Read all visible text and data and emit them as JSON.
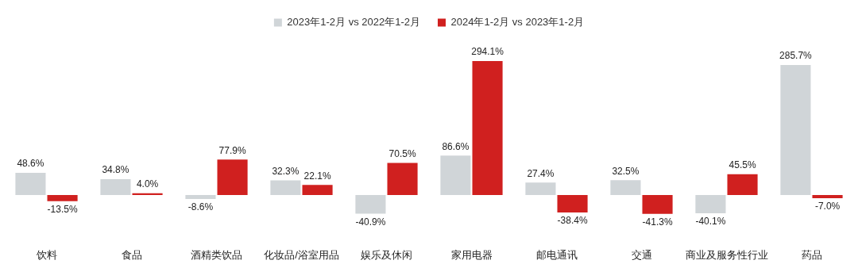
{
  "chart_data": {
    "type": "bar",
    "categories": [
      "饮料",
      "食品",
      "酒精类饮品",
      "化妆品/浴室用品",
      "娱乐及休闲",
      "家用电器",
      "邮电通讯",
      "交通",
      "商业及服务性行业",
      "药品"
    ],
    "series": [
      {
        "name": "2023年1-2月 vs 2022年1-2月",
        "color": "#d0d5d8",
        "values": [
          48.6,
          34.8,
          -8.6,
          32.3,
          -40.9,
          86.6,
          27.4,
          32.5,
          -40.1,
          285.7
        ],
        "value_labels": [
          "48.6%",
          "34.8%",
          "-8.6%",
          "32.3%",
          "-40.9%",
          "86.6%",
          "27.4%",
          "32.5%",
          "-40.1%",
          "285.7%"
        ]
      },
      {
        "name": "2024年1-2月 vs 2023年1-2月",
        "color": "#d0201f",
        "values": [
          -13.5,
          4.0,
          77.9,
          22.1,
          70.5,
          294.1,
          -38.4,
          -41.3,
          45.5,
          -7.0
        ],
        "value_labels": [
          "-13.5%",
          "4.0%",
          "77.9%",
          "22.1%",
          "70.5%",
          "294.1%",
          "-38.4%",
          "-41.3%",
          "45.5%",
          "-7.0%"
        ]
      }
    ],
    "legend": "top",
    "grid": false
  }
}
